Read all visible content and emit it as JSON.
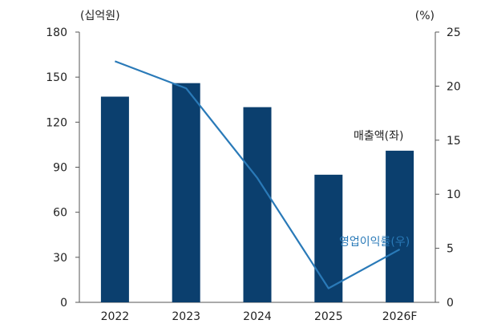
{
  "chart_data": {
    "type": "bar",
    "categories": [
      "2022",
      "2023",
      "2024",
      "2025",
      "2026F"
    ],
    "series": [
      {
        "name": "매출액(좌)",
        "type": "bar",
        "axis": "left",
        "values": [
          137,
          146,
          130,
          85,
          101
        ]
      },
      {
        "name": "영업이익률(우)",
        "type": "line",
        "axis": "right",
        "values": [
          22.3,
          19.8,
          11.5,
          1.3,
          4.9
        ]
      }
    ],
    "left_axis": {
      "unit": "(십억원)",
      "ticks": [
        0,
        30,
        60,
        90,
        120,
        150,
        180
      ],
      "range": [
        0,
        180
      ]
    },
    "right_axis": {
      "unit": "(%)",
      "ticks": [
        0,
        5,
        10,
        15,
        20,
        25
      ],
      "range": [
        0,
        25
      ]
    },
    "grid": false,
    "colors": {
      "bar": "#0b3f6e",
      "line": "#2a7ab8",
      "line_label": "#2a7ab8"
    }
  }
}
